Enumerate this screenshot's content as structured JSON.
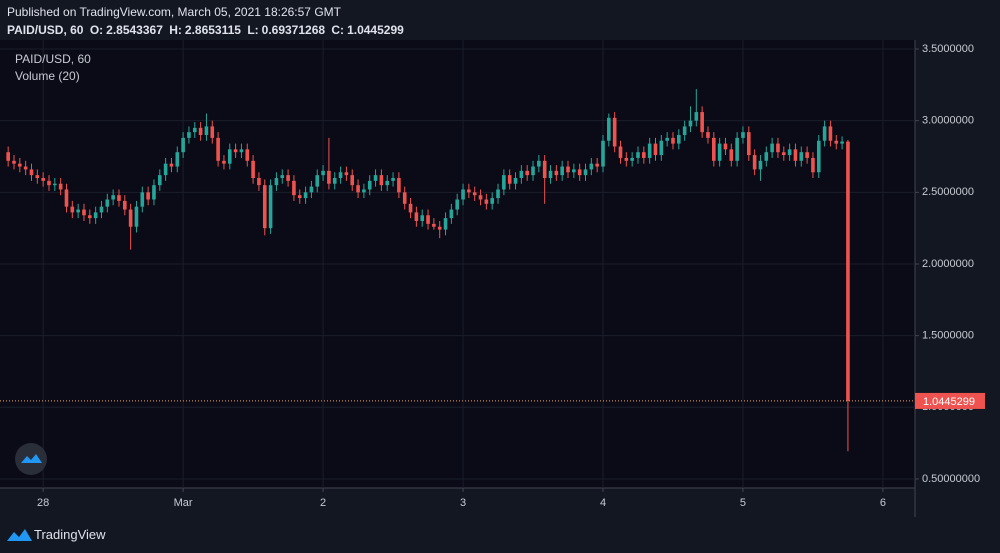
{
  "published": "Published on TradingView.com, March 05, 2021 18:26:57 GMT",
  "brand": "TradingView",
  "chart_data": {
    "type": "candlestick",
    "title": "PAID/USD, 60",
    "subtitle": "Volume (20)",
    "ohlc_labels": [
      "O:",
      "H:",
      "L:",
      "C:"
    ],
    "up_color": "#26a69a",
    "down_color": "#ef5350",
    "price_line_color": "#f7a35c",
    "grid": true,
    "ylim": [
      0.437,
      3.542
    ],
    "yticks": [
      {
        "value": 3.5,
        "label": "3.5000000"
      },
      {
        "value": 3.0,
        "label": "3.0000000"
      },
      {
        "value": 2.5,
        "label": "2.5000000"
      },
      {
        "value": 2.0,
        "label": "2.0000000"
      },
      {
        "value": 1.5,
        "label": "1.5000000"
      },
      {
        "value": 1.0,
        "label": "1.0000000"
      },
      {
        "value": 0.5,
        "label": "0.50000000"
      }
    ],
    "xlim": [
      -1.4,
      155.5
    ],
    "xticks": [
      {
        "value": 6,
        "label": "28"
      },
      {
        "value": 30,
        "label": "Mar"
      },
      {
        "value": 54,
        "label": "2"
      },
      {
        "value": 78,
        "label": "3"
      },
      {
        "value": 102,
        "label": "4"
      },
      {
        "value": 126,
        "label": "5"
      },
      {
        "value": 150,
        "label": "6"
      }
    ],
    "open": [
      2.78,
      2.72,
      2.7,
      2.68,
      2.66,
      2.62,
      2.6,
      2.58,
      2.55,
      2.56,
      2.52,
      2.4,
      2.36,
      2.38,
      2.34,
      2.32,
      2.36,
      2.4,
      2.45,
      2.48,
      2.44,
      2.38,
      2.26,
      2.4,
      2.5,
      2.45,
      2.55,
      2.62,
      2.7,
      2.68,
      2.78,
      2.88,
      2.92,
      2.95,
      2.9,
      2.96,
      2.88,
      2.72,
      2.7,
      2.8,
      2.78,
      2.8,
      2.72,
      2.6,
      2.55,
      2.25,
      2.55,
      2.6,
      2.62,
      2.58,
      2.48,
      2.46,
      2.5,
      2.54,
      2.62,
      2.65,
      2.56,
      2.6,
      2.64,
      2.62,
      2.55,
      2.5,
      2.52,
      2.58,
      2.62,
      2.55,
      2.58,
      2.6,
      2.5,
      2.42,
      2.36,
      2.3,
      2.34,
      2.28,
      2.26,
      2.24,
      2.32,
      2.38,
      2.45,
      2.52,
      2.5,
      2.48,
      2.45,
      2.42,
      2.46,
      2.52,
      2.62,
      2.56,
      2.6,
      2.65,
      2.62,
      2.68,
      2.72,
      2.6,
      2.65,
      2.62,
      2.68,
      2.64,
      2.66,
      2.62,
      2.66,
      2.7,
      2.68,
      2.86,
      3.02,
      2.82,
      2.74,
      2.72,
      2.74,
      2.78,
      2.74,
      2.84,
      2.76,
      2.86,
      2.88,
      2.84,
      2.9,
      2.96,
      3.0,
      3.06,
      2.92,
      2.88,
      2.72,
      2.84,
      2.8,
      2.72,
      2.88,
      2.92,
      2.76,
      2.66,
      2.72,
      2.78,
      2.84,
      2.78,
      2.76,
      2.8,
      2.72,
      2.78,
      2.74,
      2.64,
      2.86,
      2.96,
      2.86,
      2.84,
      2.8543367
    ],
    "high": [
      2.82,
      2.76,
      2.74,
      2.72,
      2.7,
      2.66,
      2.64,
      2.62,
      2.6,
      2.6,
      2.56,
      2.44,
      2.42,
      2.42,
      2.38,
      2.4,
      2.44,
      2.49,
      2.52,
      2.52,
      2.48,
      2.42,
      2.44,
      2.54,
      2.54,
      2.59,
      2.66,
      2.74,
      2.74,
      2.82,
      2.92,
      2.96,
      2.99,
      2.99,
      3.05,
      3.0,
      2.92,
      2.76,
      2.84,
      2.84,
      2.84,
      2.84,
      2.76,
      2.64,
      2.59,
      2.59,
      2.64,
      2.66,
      2.66,
      2.62,
      2.52,
      2.54,
      2.58,
      2.66,
      2.69,
      2.88,
      2.64,
      2.68,
      2.68,
      2.66,
      2.59,
      2.56,
      2.62,
      2.66,
      2.66,
      2.62,
      2.64,
      2.64,
      2.54,
      2.46,
      2.4,
      2.38,
      2.38,
      2.32,
      2.3,
      2.36,
      2.42,
      2.49,
      2.56,
      2.56,
      2.54,
      2.52,
      2.49,
      2.5,
      2.56,
      2.66,
      2.66,
      2.64,
      2.69,
      2.69,
      2.72,
      2.76,
      2.76,
      2.69,
      2.69,
      2.72,
      2.72,
      2.7,
      2.7,
      2.7,
      2.74,
      2.74,
      2.9,
      3.05,
      3.06,
      2.86,
      2.78,
      2.78,
      2.82,
      2.82,
      2.88,
      2.88,
      2.9,
      2.92,
      2.92,
      2.94,
      3.0,
      3.1,
      3.22,
      3.1,
      2.96,
      2.92,
      2.88,
      2.88,
      2.84,
      2.92,
      2.96,
      2.96,
      2.8,
      2.76,
      2.82,
      2.88,
      2.88,
      2.82,
      2.84,
      2.84,
      2.82,
      2.82,
      2.78,
      2.9,
      3.0,
      3.0,
      2.9,
      2.89,
      2.8653115
    ],
    "low": [
      2.68,
      2.66,
      2.64,
      2.62,
      2.58,
      2.56,
      2.54,
      2.51,
      2.51,
      2.48,
      2.36,
      2.32,
      2.32,
      2.3,
      2.28,
      2.28,
      2.32,
      2.36,
      2.41,
      2.4,
      2.34,
      2.1,
      2.22,
      2.36,
      2.41,
      2.41,
      2.51,
      2.58,
      2.64,
      2.64,
      2.74,
      2.84,
      2.88,
      2.86,
      2.86,
      2.84,
      2.68,
      2.66,
      2.66,
      2.74,
      2.74,
      2.68,
      2.56,
      2.51,
      2.2,
      2.21,
      2.51,
      2.56,
      2.54,
      2.44,
      2.42,
      2.42,
      2.46,
      2.5,
      2.58,
      2.52,
      2.52,
      2.56,
      2.58,
      2.51,
      2.46,
      2.46,
      2.48,
      2.54,
      2.51,
      2.51,
      2.54,
      2.46,
      2.38,
      2.32,
      2.26,
      2.26,
      2.24,
      2.24,
      2.18,
      2.2,
      2.28,
      2.34,
      2.41,
      2.46,
      2.44,
      2.41,
      2.38,
      2.38,
      2.42,
      2.48,
      2.52,
      2.52,
      2.56,
      2.58,
      2.58,
      2.64,
      2.42,
      2.56,
      2.58,
      2.58,
      2.6,
      2.6,
      2.58,
      2.58,
      2.62,
      2.64,
      2.64,
      2.82,
      2.78,
      2.7,
      2.68,
      2.68,
      2.7,
      2.7,
      2.7,
      2.72,
      2.72,
      2.82,
      2.8,
      2.8,
      2.86,
      2.92,
      2.96,
      2.88,
      2.84,
      2.68,
      2.68,
      2.76,
      2.68,
      2.68,
      2.84,
      2.72,
      2.62,
      2.58,
      2.68,
      2.74,
      2.74,
      2.72,
      2.72,
      2.68,
      2.68,
      2.7,
      2.6,
      2.6,
      2.82,
      2.82,
      2.8,
      2.8,
      0.69371268
    ],
    "close": [
      2.72,
      2.7,
      2.68,
      2.66,
      2.62,
      2.6,
      2.58,
      2.55,
      2.56,
      2.52,
      2.4,
      2.36,
      2.38,
      2.34,
      2.32,
      2.36,
      2.4,
      2.45,
      2.48,
      2.44,
      2.38,
      2.26,
      2.4,
      2.5,
      2.45,
      2.55,
      2.62,
      2.7,
      2.68,
      2.78,
      2.88,
      2.92,
      2.95,
      2.9,
      2.96,
      2.88,
      2.72,
      2.7,
      2.8,
      2.78,
      2.8,
      2.72,
      2.6,
      2.55,
      2.25,
      2.55,
      2.6,
      2.62,
      2.58,
      2.48,
      2.46,
      2.5,
      2.54,
      2.62,
      2.65,
      2.56,
      2.6,
      2.64,
      2.62,
      2.55,
      2.5,
      2.52,
      2.58,
      2.62,
      2.55,
      2.58,
      2.6,
      2.5,
      2.42,
      2.36,
      2.3,
      2.34,
      2.28,
      2.26,
      2.24,
      2.32,
      2.38,
      2.45,
      2.52,
      2.5,
      2.48,
      2.45,
      2.42,
      2.46,
      2.52,
      2.62,
      2.56,
      2.6,
      2.65,
      2.62,
      2.68,
      2.72,
      2.6,
      2.65,
      2.62,
      2.68,
      2.64,
      2.66,
      2.62,
      2.66,
      2.7,
      2.68,
      2.86,
      3.02,
      2.82,
      2.74,
      2.72,
      2.74,
      2.78,
      2.74,
      2.84,
      2.76,
      2.86,
      2.88,
      2.84,
      2.9,
      2.96,
      3.0,
      3.06,
      2.92,
      2.88,
      2.72,
      2.84,
      2.8,
      2.72,
      2.88,
      2.92,
      2.76,
      2.66,
      2.72,
      2.78,
      2.84,
      2.78,
      2.76,
      2.8,
      2.72,
      2.78,
      2.74,
      2.64,
      2.86,
      2.96,
      2.86,
      2.84,
      2.8543367,
      1.0445299
    ]
  }
}
